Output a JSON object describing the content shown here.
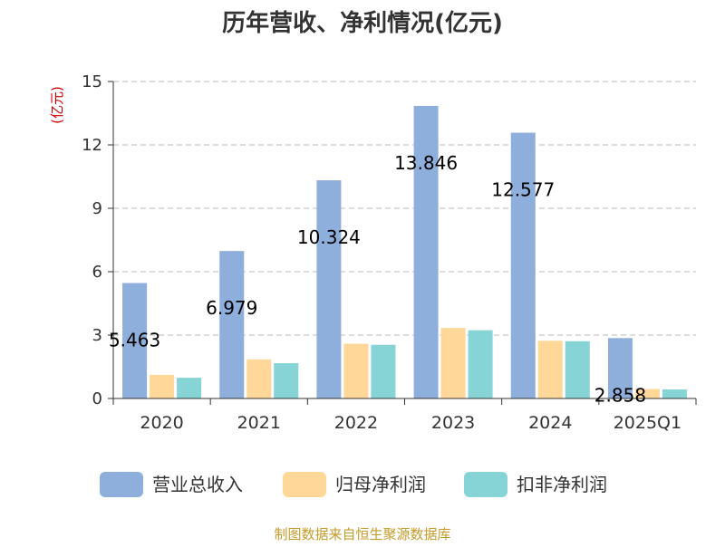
{
  "chart_data": {
    "type": "bar",
    "title": "历年营收、净利情况(亿元)",
    "unit_label": "(亿元)",
    "categories": [
      "2020",
      "2021",
      "2022",
      "2023",
      "2024",
      "2025Q1"
    ],
    "ylim": [
      0,
      15
    ],
    "yticks": [
      "0",
      "3",
      "6",
      "9",
      "12",
      "15"
    ],
    "grid": true,
    "legend_position": "bottom",
    "series": [
      {
        "name": "营业总收入",
        "color": "#8eaedb",
        "values": [
          5.463,
          6.979,
          10.324,
          13.846,
          12.577,
          2.858
        ],
        "labels": [
          "5.463",
          "6.979",
          "10.324",
          "13.846",
          "12.577",
          "2.858"
        ]
      },
      {
        "name": "归母净利润",
        "color": "#ffd899",
        "values": [
          1.12,
          1.85,
          2.59,
          3.34,
          2.73,
          0.45
        ]
      },
      {
        "name": "扣非净利润",
        "color": "#87d4d6",
        "values": [
          0.98,
          1.67,
          2.54,
          3.23,
          2.71,
          0.43
        ]
      }
    ],
    "source": "制图数据来自恒生聚源数据库"
  }
}
